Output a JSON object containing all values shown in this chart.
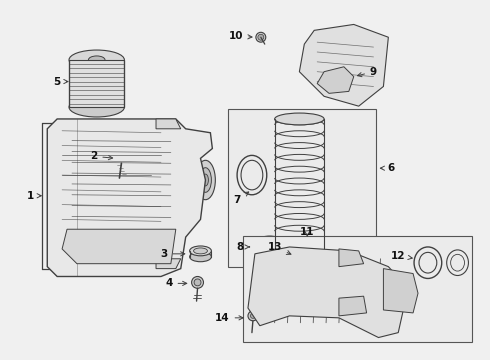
{
  "bg": "#f0f0f0",
  "lc": "#404040",
  "tc": "#111111",
  "fig_w": 4.9,
  "fig_h": 3.6,
  "dpi": 100
}
